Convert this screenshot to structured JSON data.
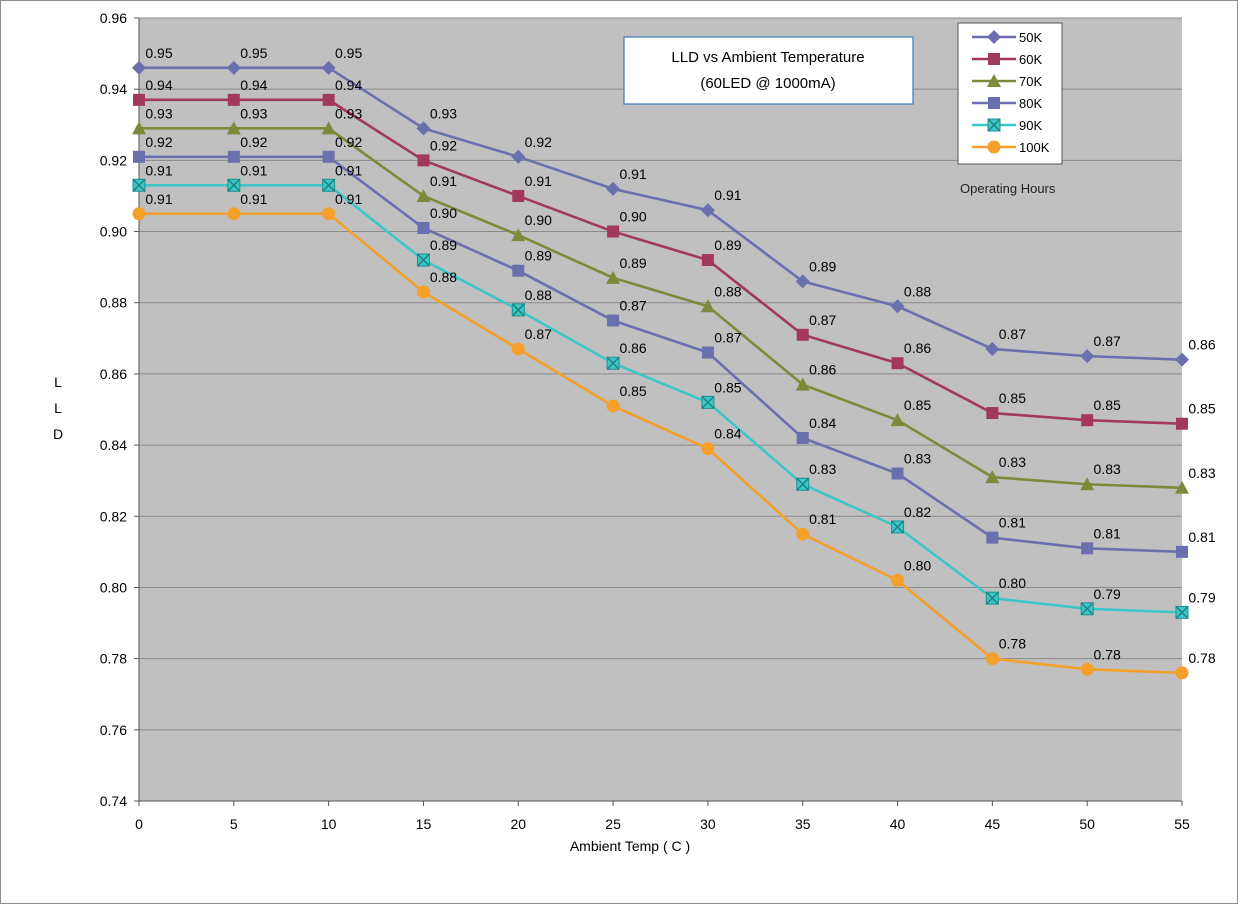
{
  "chart_data": {
    "type": "line",
    "title": "LLD vs Ambient Temperature",
    "subtitle": "(60LED @ 1000mA)",
    "xlabel": "Ambient Temp ( C )",
    "ylabel": "L\nL\nD",
    "legend_title": "Operating Hours",
    "legend_position": "top-right",
    "grid": true,
    "plot_background": "#c0c0c0",
    "x": [
      0,
      5,
      10,
      15,
      20,
      25,
      30,
      35,
      40,
      45,
      50,
      55
    ],
    "xticks": [
      "0",
      "5",
      "10",
      "15",
      "20",
      "25",
      "30",
      "35",
      "40",
      "45",
      "50",
      "55"
    ],
    "ylim": [
      0.74,
      0.96
    ],
    "yticks": [
      "0.74",
      "0.76",
      "0.78",
      "0.80",
      "0.82",
      "0.84",
      "0.86",
      "0.88",
      "0.90",
      "0.92",
      "0.94",
      "0.96"
    ],
    "series": [
      {
        "name": "50K",
        "color": "#6a6fae",
        "marker": "diamond",
        "values": [
          0.946,
          0.946,
          0.946,
          0.929,
          0.921,
          0.912,
          0.906,
          0.886,
          0.879,
          0.867,
          0.865,
          0.864
        ],
        "labels": [
          "0.95",
          "0.95",
          "0.95",
          "0.93",
          "0.92",
          "0.91",
          "0.91",
          "0.89",
          "0.88",
          "0.87",
          "0.87",
          "0.86"
        ]
      },
      {
        "name": "60K",
        "color": "#a3385f",
        "marker": "square",
        "values": [
          0.937,
          0.937,
          0.937,
          0.92,
          0.91,
          0.9,
          0.892,
          0.871,
          0.863,
          0.849,
          0.847,
          0.846
        ],
        "labels": [
          "0.94",
          "0.94",
          "0.94",
          "0.92",
          "0.91",
          "0.90",
          "0.89",
          "0.87",
          "0.86",
          "0.85",
          "0.85",
          "0.85"
        ]
      },
      {
        "name": "70K",
        "color": "#7d8a3a",
        "marker": "triangle",
        "values": [
          0.929,
          0.929,
          0.929,
          0.91,
          0.899,
          0.887,
          0.879,
          0.857,
          0.847,
          0.831,
          0.829,
          0.828
        ],
        "labels": [
          "0.93",
          "0.93",
          "0.93",
          "0.91",
          "0.90",
          "0.89",
          "0.88",
          "0.86",
          "0.85",
          "0.83",
          "0.83",
          "0.83"
        ]
      },
      {
        "name": "80K",
        "color": "#6a6fae",
        "marker": "square",
        "values": [
          0.921,
          0.921,
          0.921,
          0.901,
          0.889,
          0.875,
          0.866,
          0.842,
          0.832,
          0.814,
          0.811,
          0.81
        ],
        "labels": [
          "0.92",
          "0.92",
          "0.92",
          "0.90",
          "0.89",
          "0.87",
          "0.87",
          "0.84",
          "0.83",
          "0.81",
          "0.81",
          "0.81"
        ]
      },
      {
        "name": "90K",
        "color": "#3cc6c6",
        "marker": "xsquare",
        "values": [
          0.913,
          0.913,
          0.913,
          0.892,
          0.878,
          0.863,
          0.852,
          0.829,
          0.817,
          0.797,
          0.794,
          0.793
        ],
        "labels": [
          "0.91",
          "0.91",
          "0.91",
          "0.89",
          "0.88",
          "0.86",
          "0.85",
          "0.83",
          "0.82",
          "0.80",
          "0.79",
          "0.79"
        ]
      },
      {
        "name": "100K",
        "color": "#f5a02a",
        "marker": "circle",
        "values": [
          0.905,
          0.905,
          0.905,
          0.883,
          0.867,
          0.851,
          0.839,
          0.815,
          0.802,
          0.78,
          0.777,
          0.776
        ],
        "labels": [
          "0.91",
          "0.91",
          "0.91",
          "0.88",
          "0.87",
          "0.85",
          "0.84",
          "0.81",
          "0.80",
          "0.78",
          "0.78",
          "0.78"
        ]
      }
    ]
  }
}
